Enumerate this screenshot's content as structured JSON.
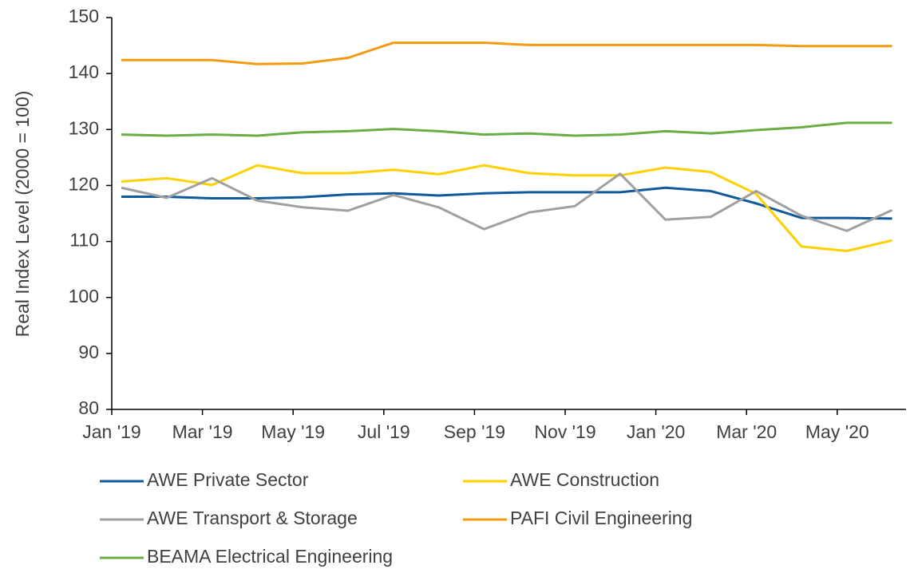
{
  "chart_data": {
    "type": "line",
    "y_label": "Real Index Level (2000 = 100)",
    "categories": [
      "Jan '19",
      null,
      "Mar '19",
      null,
      "May '19",
      null,
      "Jul '19",
      null,
      "Sep '19",
      null,
      "Nov '19",
      null,
      "Jan '20",
      null,
      "Mar '20",
      null,
      "May '20",
      null
    ],
    "ylim": [
      80,
      150
    ],
    "yticks": [
      80,
      90,
      100,
      110,
      120,
      130,
      140,
      150
    ],
    "series": [
      {
        "name": "AWE Private Sector",
        "color": "#0e5a9c",
        "values": [
          118,
          118,
          117.7,
          117.7,
          117.9,
          118.4,
          118.6,
          118.2,
          118.6,
          118.8,
          118.8,
          118.8,
          119.6,
          119,
          116.8,
          114.2,
          114.2,
          114.1
        ]
      },
      {
        "name": "AWE Construction",
        "color": "#ffd000",
        "values": [
          120.7,
          121.3,
          120.1,
          123.6,
          122.2,
          122.2,
          122.8,
          122.0,
          123.6,
          122.2,
          121.8,
          121.8,
          123.2,
          122.4,
          118.5,
          109.1,
          108.3,
          110.2
        ]
      },
      {
        "name": "AWE Transport & Storage",
        "color": "#a0a0a0",
        "values": [
          119.6,
          117.8,
          121.3,
          117.3,
          116.1,
          115.5,
          118.3,
          116.1,
          112.2,
          115.2,
          116.3,
          122.1,
          113.9,
          114.4,
          119.0,
          114.6,
          111.9,
          115.6
        ]
      },
      {
        "name": "PAFI Civil Engineering",
        "color": "#f29b11",
        "values": [
          142.4,
          142.4,
          142.4,
          141.7,
          141.8,
          142.8,
          145.5,
          145.5,
          145.5,
          145.1,
          145.1,
          145.1,
          145.1,
          145.1,
          145.1,
          144.9,
          144.9,
          144.9
        ]
      },
      {
        "name": "BEAMA Electrical Engineering",
        "color": "#6aad45",
        "values": [
          129.1,
          128.9,
          129.1,
          128.9,
          129.5,
          129.7,
          130.1,
          129.7,
          129.1,
          129.3,
          128.9,
          129.1,
          129.7,
          129.3,
          129.9,
          130.4,
          131.2,
          131.2
        ]
      }
    ]
  }
}
